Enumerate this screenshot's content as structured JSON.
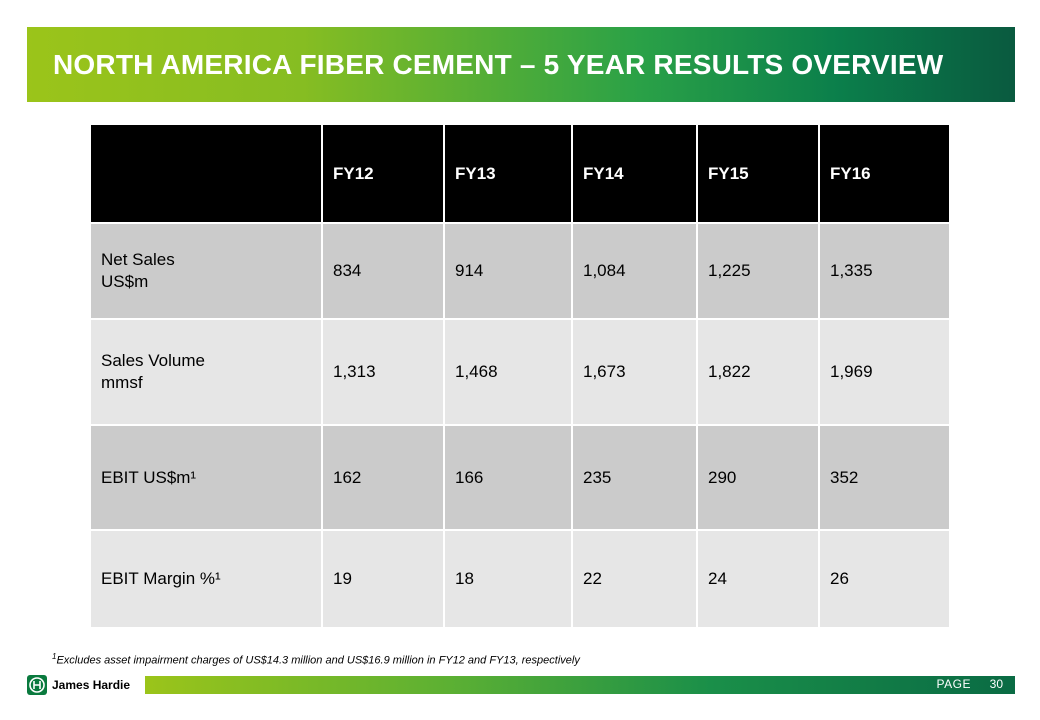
{
  "header": {
    "title": "NORTH AMERICA FIBER CEMENT – 5 YEAR RESULTS OVERVIEW"
  },
  "table": {
    "columns": [
      "",
      "FY12",
      "FY13",
      "FY14",
      "FY15",
      "FY16"
    ],
    "rows": [
      {
        "label_line1": "Net Sales",
        "label_line2": "US$m",
        "values": [
          "834",
          "914",
          "1,084",
          "1,225",
          "1,335"
        ]
      },
      {
        "label_line1": "Sales Volume",
        "label_line2": "mmsf",
        "values": [
          "1,313",
          "1,468",
          "1,673",
          "1,822",
          "1,969"
        ]
      },
      {
        "label_line1": "EBIT US$m¹",
        "values": [
          "162",
          "166",
          "235",
          "290",
          "352"
        ]
      },
      {
        "label_line1": "EBIT Margin %¹",
        "values": [
          "19",
          "18",
          "22",
          "24",
          "26"
        ]
      }
    ]
  },
  "footnote": {
    "marker": "1",
    "text": "Excludes asset impairment charges of US$14.3 million and US$16.9 million in FY12 and FY13, respectively"
  },
  "footer": {
    "logo_text": "James Hardie",
    "logo_icon": "james-hardie-logo-icon",
    "page_label": "PAGE",
    "page_number": "30"
  },
  "colors": {
    "banner_start": "#9bc41a",
    "banner_end": "#0a5a3f",
    "header_row": "#000000",
    "row_dark": "#cbcbcb",
    "row_light": "#e6e6e6"
  }
}
